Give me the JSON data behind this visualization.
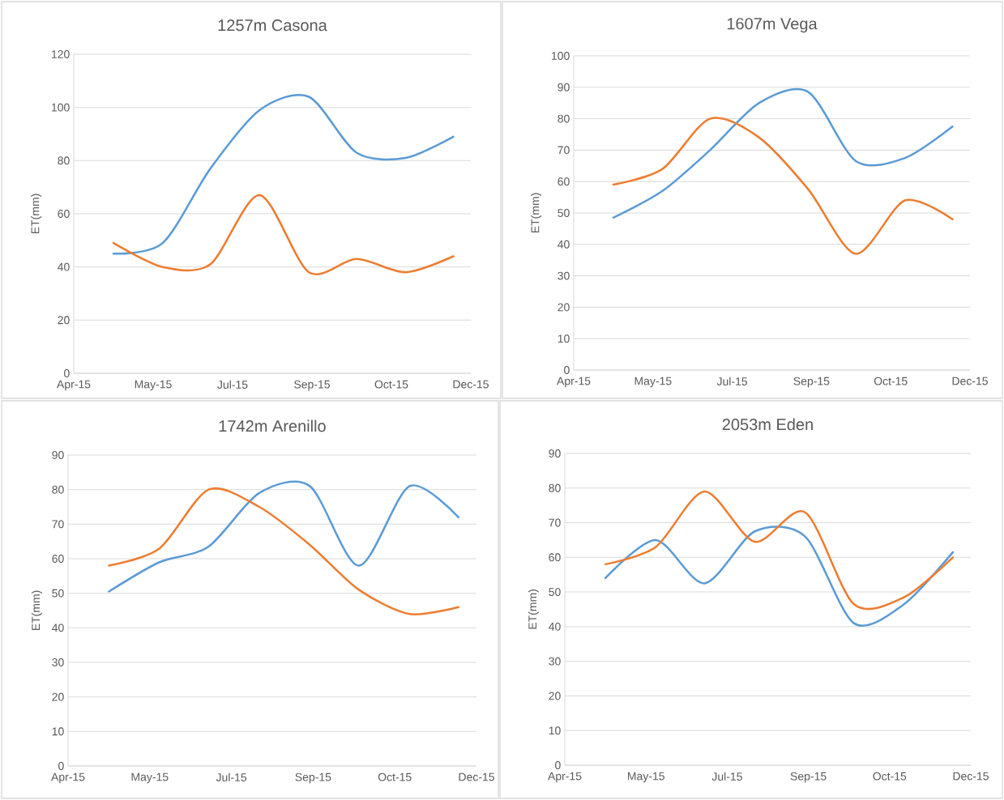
{
  "chart_data": [
    {
      "type": "line",
      "title": "1257m  Casona",
      "ylabel": "ET(mm)",
      "grid": "y",
      "x": [
        "2015-05-01",
        "2015-06-01",
        "2015-07-01",
        "2015-08-01",
        "2015-09-01",
        "2015-10-01",
        "2015-11-01",
        "2015-12-01"
      ],
      "xlim": [
        "2015-04-06",
        "2015-12-12"
      ],
      "xticks": [
        {
          "value": "2015-04-06",
          "label": "Apr-15"
        },
        {
          "value": "2015-05-26",
          "label": "May-15"
        },
        {
          "value": "2015-07-15",
          "label": "Jul-15"
        },
        {
          "value": "2015-09-03",
          "label": "Sep-15"
        },
        {
          "value": "2015-10-23",
          "label": "Oct-15"
        },
        {
          "value": "2015-12-12",
          "label": "Dec-15"
        }
      ],
      "ylim": [
        0,
        120
      ],
      "yticks": [
        0,
        20,
        40,
        60,
        80,
        100,
        120
      ],
      "series": [
        {
          "color": "#5b9bd5",
          "values": [
            45,
            49,
            77,
            99,
            104,
            83,
            81,
            89
          ]
        },
        {
          "color": "#ed7d31",
          "values": [
            49,
            40,
            41,
            67,
            38,
            43,
            38,
            44
          ]
        }
      ]
    },
    {
      "type": "line",
      "title": "1607m Vega",
      "ylabel": "ET(mm)",
      "grid": "y",
      "x": [
        "2015-05-01",
        "2015-06-01",
        "2015-07-01",
        "2015-08-01",
        "2015-09-01",
        "2015-10-01",
        "2015-11-01",
        "2015-12-01"
      ],
      "xlim": [
        "2015-04-06",
        "2015-12-12"
      ],
      "xticks": [
        {
          "value": "2015-04-06",
          "label": "Apr-15"
        },
        {
          "value": "2015-05-26",
          "label": "May-15"
        },
        {
          "value": "2015-07-15",
          "label": "Jul-15"
        },
        {
          "value": "2015-09-03",
          "label": "Sep-15"
        },
        {
          "value": "2015-10-23",
          "label": "Oct-15"
        },
        {
          "value": "2015-12-12",
          "label": "Dec-15"
        }
      ],
      "ylim": [
        0,
        100
      ],
      "yticks": [
        0,
        10,
        20,
        30,
        40,
        50,
        60,
        70,
        80,
        90,
        100
      ],
      "series": [
        {
          "color": "#5b9bd5",
          "values": [
            48.5,
            57,
            70,
            85,
            88.5,
            66.5,
            67.5,
            77.5
          ]
        },
        {
          "color": "#ed7d31",
          "values": [
            59,
            64,
            80,
            74,
            57.5,
            37,
            54,
            48
          ]
        }
      ]
    },
    {
      "type": "line",
      "title": "1742m Arenillo",
      "ylabel": "ET(mm)",
      "grid": "y",
      "x": [
        "2015-05-01",
        "2015-06-01",
        "2015-07-01",
        "2015-08-01",
        "2015-09-01",
        "2015-10-01",
        "2015-11-01",
        "2015-12-01"
      ],
      "xlim": [
        "2015-04-06",
        "2015-12-12"
      ],
      "xticks": [
        {
          "value": "2015-04-06",
          "label": "Apr-15"
        },
        {
          "value": "2015-05-26",
          "label": "May-15"
        },
        {
          "value": "2015-07-15",
          "label": "Jul-15"
        },
        {
          "value": "2015-09-03",
          "label": "Sep-15"
        },
        {
          "value": "2015-10-23",
          "label": "Oct-15"
        },
        {
          "value": "2015-12-12",
          "label": "Dec-15"
        }
      ],
      "ylim": [
        0,
        90
      ],
      "yticks": [
        0,
        10,
        20,
        30,
        40,
        50,
        60,
        70,
        80,
        90
      ],
      "series": [
        {
          "color": "#5b9bd5",
          "values": [
            50.5,
            59,
            63.5,
            79,
            81,
            58,
            81,
            72
          ]
        },
        {
          "color": "#ed7d31",
          "values": [
            58,
            63,
            80,
            75,
            64,
            51,
            44,
            46
          ]
        }
      ]
    },
    {
      "type": "line",
      "title": "2053m Eden",
      "ylabel": "ET(mm)",
      "grid": "y",
      "x": [
        "2015-05-01",
        "2015-06-01",
        "2015-07-01",
        "2015-08-01",
        "2015-09-01",
        "2015-10-01",
        "2015-11-01",
        "2015-12-01"
      ],
      "xlim": [
        "2015-04-06",
        "2015-12-12"
      ],
      "xticks": [
        {
          "value": "2015-04-06",
          "label": "Apr-15"
        },
        {
          "value": "2015-05-26",
          "label": "May-15"
        },
        {
          "value": "2015-07-15",
          "label": "Jul-15"
        },
        {
          "value": "2015-09-03",
          "label": "Sep-15"
        },
        {
          "value": "2015-10-23",
          "label": "Oct-15"
        },
        {
          "value": "2015-12-12",
          "label": "Dec-15"
        }
      ],
      "ylim": [
        0,
        90
      ],
      "yticks": [
        0,
        10,
        20,
        30,
        40,
        50,
        60,
        70,
        80,
        90
      ],
      "series": [
        {
          "color": "#5b9bd5",
          "values": [
            54,
            65,
            52.5,
            67.5,
            66,
            41,
            46.5,
            61.5
          ]
        },
        {
          "color": "#ed7d31",
          "values": [
            58,
            63,
            79,
            64.5,
            73,
            46.5,
            48.5,
            60
          ]
        }
      ]
    }
  ]
}
